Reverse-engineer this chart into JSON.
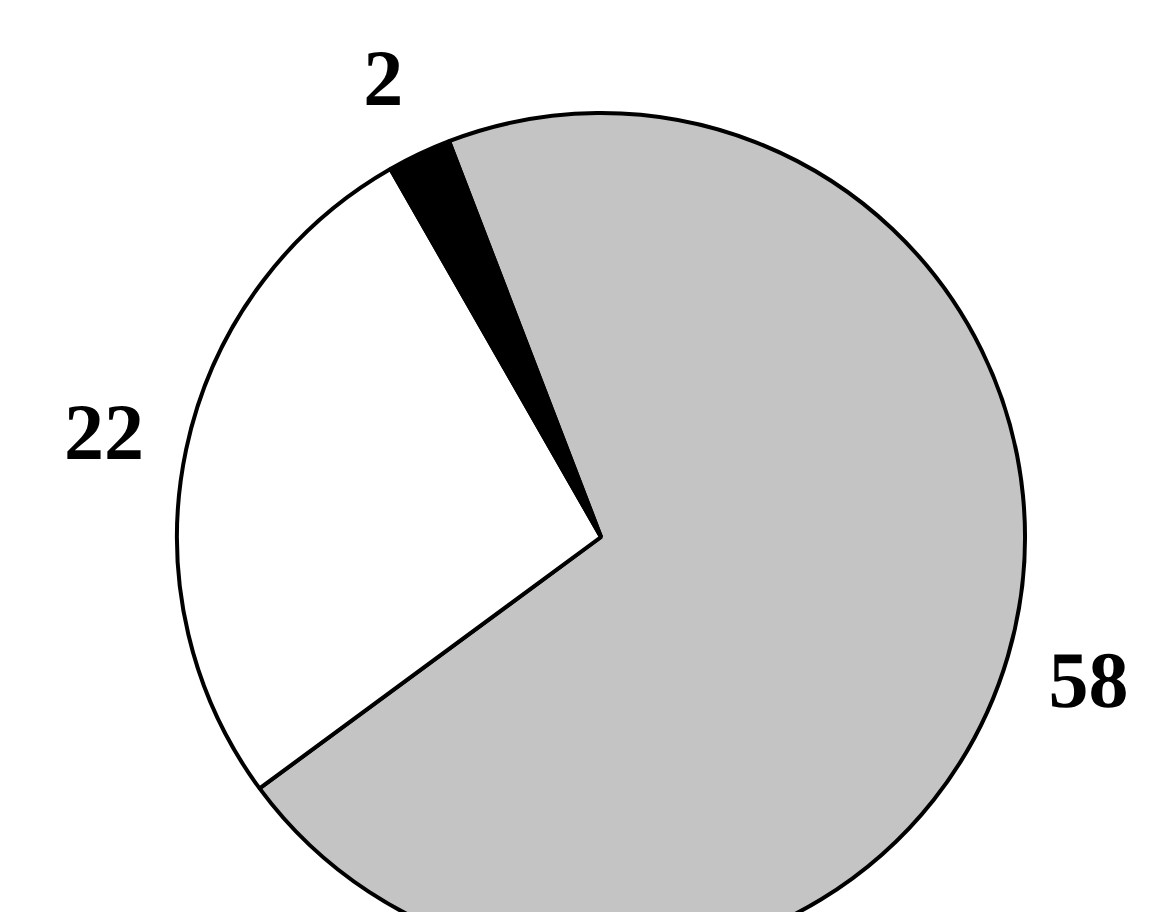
{
  "chart_data": {
    "type": "pie",
    "categories": [
      null,
      null,
      null
    ],
    "values": [
      58,
      22,
      2
    ],
    "colors": [
      "#c4c4c4",
      "#ffffff",
      "#000000"
    ],
    "data_labels": true
  }
}
